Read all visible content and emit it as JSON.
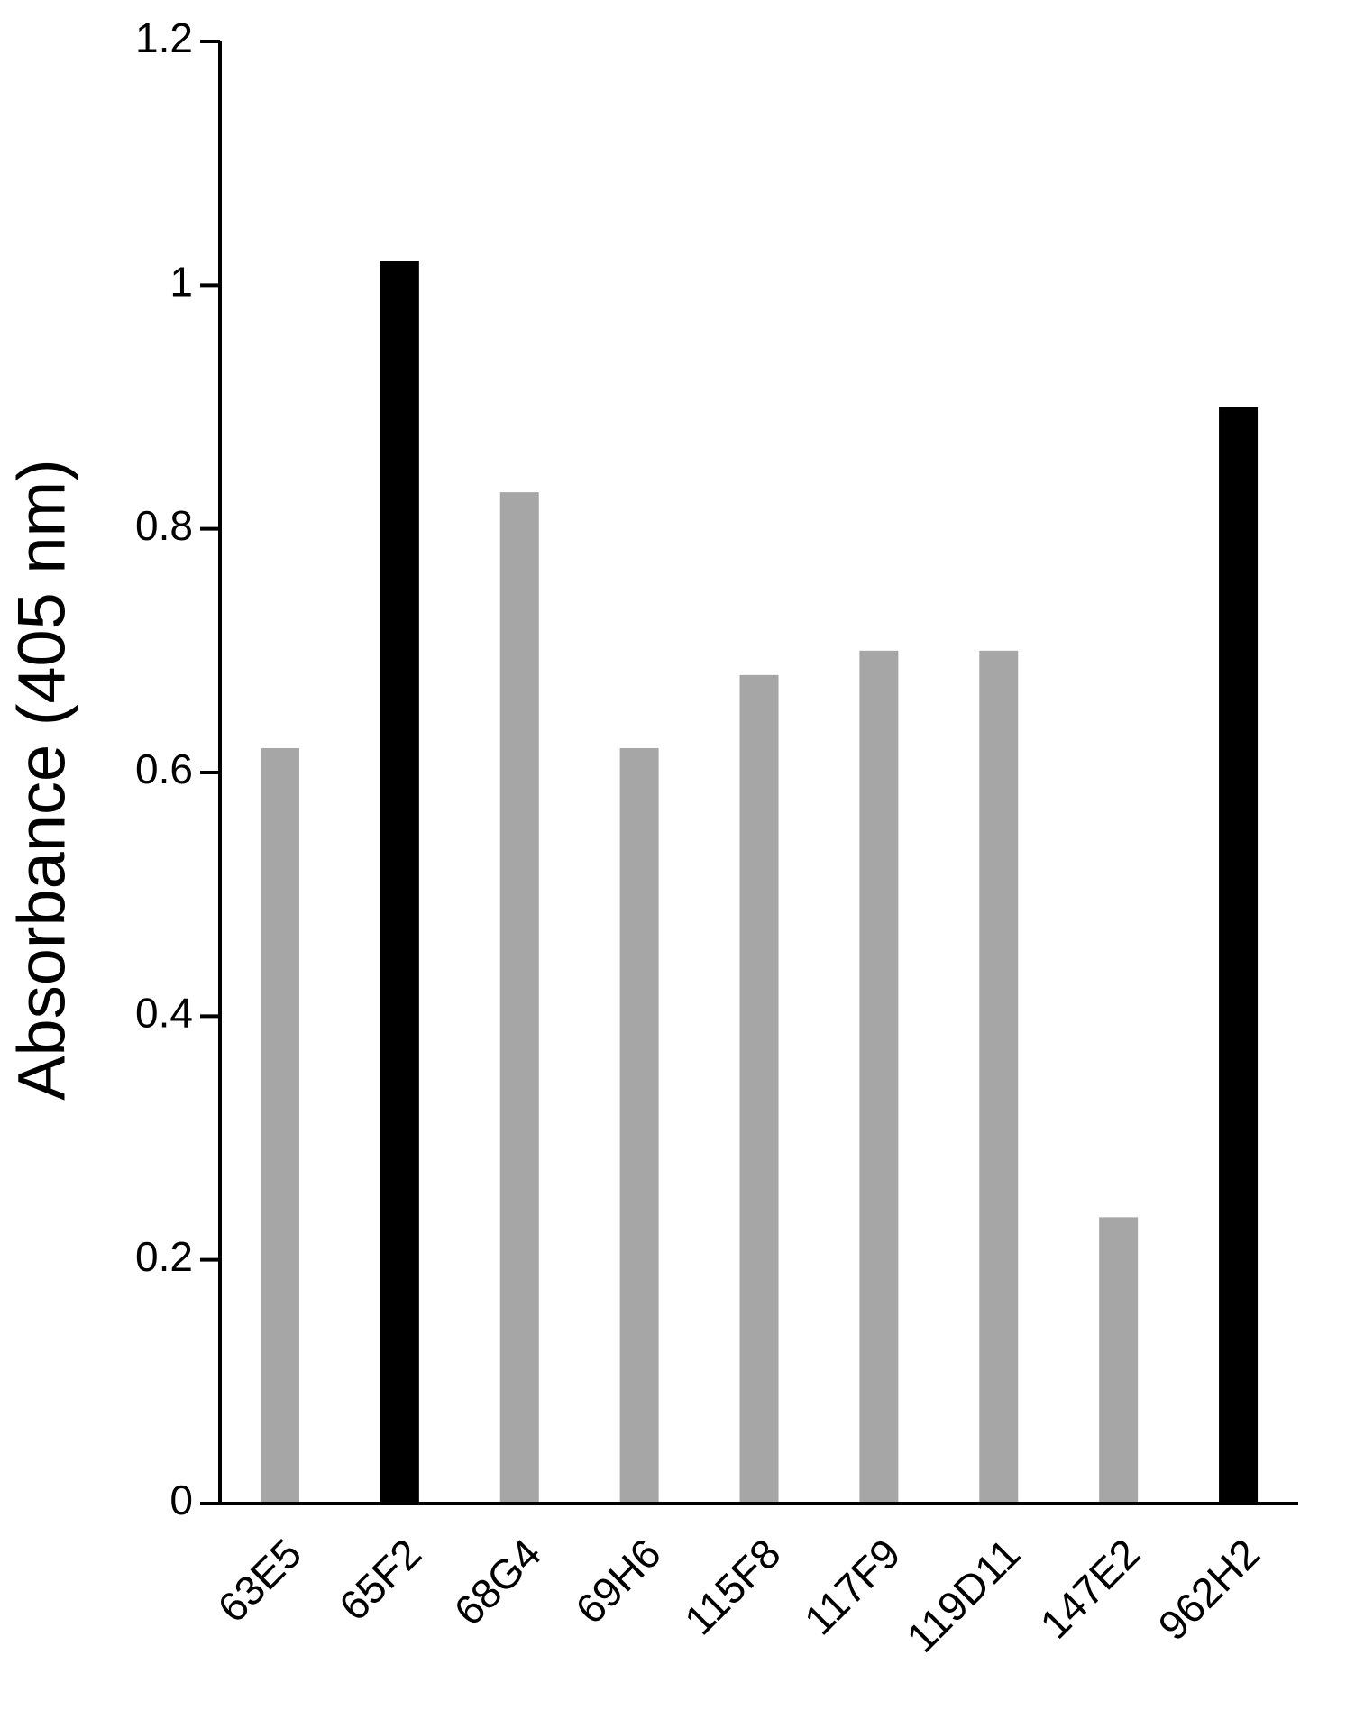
{
  "chart_data": {
    "type": "bar",
    "y_label": "Absorbance (405 nm)",
    "categories": [
      "63E5",
      "65F2",
      "68G4",
      "69H6",
      "115F8",
      "117F9",
      "119D11",
      "147E2",
      "962H2"
    ],
    "values": [
      0.62,
      1.02,
      0.83,
      0.62,
      0.68,
      0.7,
      0.7,
      0.235,
      0.9
    ],
    "colors": [
      "#a6a6a6",
      "#000000",
      "#a6a6a6",
      "#a6a6a6",
      "#a6a6a6",
      "#a6a6a6",
      "#a6a6a6",
      "#a6a6a6",
      "#000000"
    ],
    "ylim": [
      0,
      1.2
    ],
    "yticks": [
      0,
      0.2,
      0.4,
      0.6,
      0.8,
      1,
      1.2
    ],
    "grid": false
  }
}
